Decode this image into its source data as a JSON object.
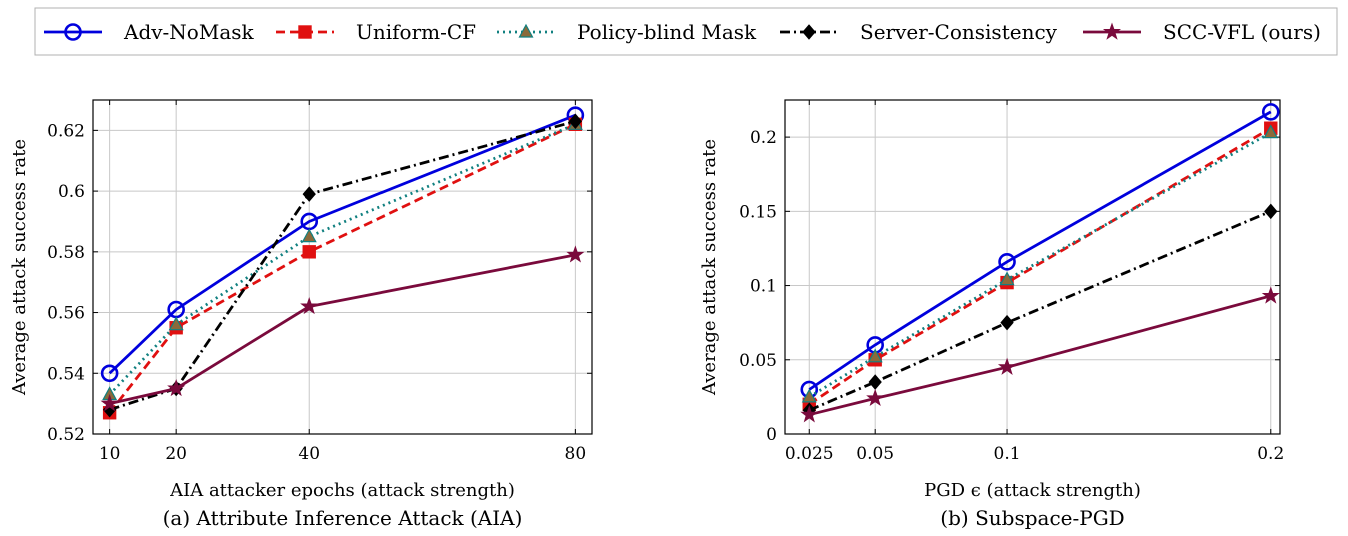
{
  "legend": {
    "entries": [
      {
        "name": "Adv-NoMask",
        "color": "#0000dd",
        "marker": "circle-icon",
        "dash": "solid"
      },
      {
        "name": "Uniform-CF",
        "color": "#e01010",
        "marker": "square-icon",
        "dash": "dashed"
      },
      {
        "name": "Policy-blind Mask",
        "color": "#118080",
        "marker": "triangle-icon",
        "dash": "dotted"
      },
      {
        "name": "Server-Consistency",
        "color": "#000000",
        "marker": "diamond-icon",
        "dash": "dashdot"
      },
      {
        "name": "SCC-VFL (ours)",
        "color": "#7a0a3c",
        "marker": "star-icon",
        "dash": "solid"
      }
    ]
  },
  "chart_data": [
    {
      "type": "line",
      "caption": "(a) Attribute Inference Attack (AIA)",
      "xlabel": "AIA attacker epochs (attack strength)",
      "ylabel": "Average attack success rate",
      "x": [
        10,
        20,
        40,
        80
      ],
      "xticks": [
        "10",
        "20",
        "40",
        "80"
      ],
      "xlim": [
        7.5,
        82.5
      ],
      "ylim": [
        0.52,
        0.63
      ],
      "yticks": [
        0.52,
        0.54,
        0.56,
        0.58,
        0.6,
        0.62
      ],
      "ytick_labels": [
        "0.52",
        "0.54",
        "0.56",
        "0.58",
        "0.6",
        "0.62"
      ],
      "grid": true,
      "series": [
        {
          "name": "Adv-NoMask",
          "values": [
            0.54,
            0.561,
            0.59,
            0.625
          ]
        },
        {
          "name": "Uniform-CF",
          "values": [
            0.527,
            0.555,
            0.58,
            0.622
          ]
        },
        {
          "name": "Policy-blind Mask",
          "values": [
            0.533,
            0.556,
            0.585,
            0.622
          ]
        },
        {
          "name": "Server-Consistency",
          "values": [
            0.528,
            0.535,
            0.599,
            0.623
          ]
        },
        {
          "name": "SCC-VFL (ours)",
          "values": [
            0.53,
            0.535,
            0.562,
            0.579
          ]
        }
      ]
    },
    {
      "type": "line",
      "caption": "(b) Subspace-PGD",
      "xlabel": "PGD ϵ (attack strength)",
      "ylabel": "Average attack success rate",
      "x": [
        0.025,
        0.05,
        0.1,
        0.2
      ],
      "xticks": [
        "0.025",
        "0.05",
        "0.1",
        "0.2"
      ],
      "xlim": [
        0.0158,
        0.2035
      ],
      "ylim": [
        0,
        0.225
      ],
      "yticks": [
        0,
        0.05,
        0.1,
        0.15,
        0.2
      ],
      "ytick_labels": [
        "0",
        "0.05",
        "0.1",
        "0.15",
        "0.2"
      ],
      "grid": true,
      "series": [
        {
          "name": "Adv-NoMask",
          "values": [
            0.03,
            0.06,
            0.116,
            0.217
          ]
        },
        {
          "name": "Uniform-CF",
          "values": [
            0.02,
            0.05,
            0.102,
            0.206
          ]
        },
        {
          "name": "Policy-blind Mask",
          "values": [
            0.025,
            0.052,
            0.104,
            0.203
          ]
        },
        {
          "name": "Server-Consistency",
          "values": [
            0.016,
            0.035,
            0.075,
            0.15
          ]
        },
        {
          "name": "SCC-VFL (ours)",
          "values": [
            0.013,
            0.024,
            0.045,
            0.093
          ]
        }
      ]
    }
  ]
}
